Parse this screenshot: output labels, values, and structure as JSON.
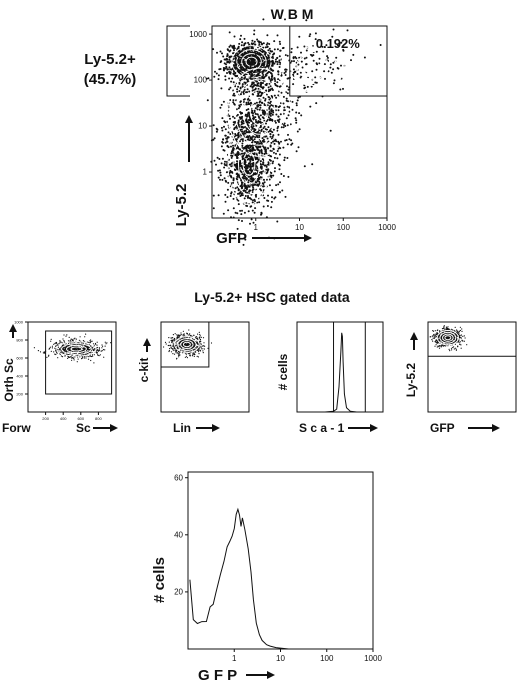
{
  "figure": {
    "main_title": "W B M",
    "gate_label_line1": "Ly-5.2+",
    "gate_label_line2": "(45.7%)",
    "panel_row_title": "Ly-5.2+ HSC gated data"
  },
  "chart_data": [
    {
      "type": "scatter",
      "title": "W B M",
      "xlabel": "GFP",
      "ylabel": "Ly-5.2",
      "xscale": "log",
      "yscale": "log",
      "xlim": [
        0.1,
        1000
      ],
      "ylim": [
        0.1,
        1500
      ],
      "x_ticks": [
        "1",
        "10",
        "100",
        "1000"
      ],
      "y_ticks": [
        "1",
        "10",
        "100",
        "1000"
      ],
      "gate_bracket": {
        "label": "Ly-5.2+",
        "percent": "(45.7%)",
        "y_range": [
          45,
          1500
        ]
      },
      "gate_box": {
        "label": "0.192%",
        "x_range": [
          6,
          1000
        ],
        "y_range": [
          45,
          1500
        ]
      },
      "population": [
        {
          "x": 0.8,
          "y": 250,
          "sx": 0.28,
          "sy": 0.22,
          "n": 900
        },
        {
          "x": 0.7,
          "y": 1.5,
          "sx": 0.3,
          "sy": 0.55,
          "n": 900
        },
        {
          "x": 1.2,
          "y": 20,
          "sx": 0.45,
          "sy": 0.6,
          "n": 600
        },
        {
          "x": 20,
          "y": 200,
          "sx": 0.45,
          "sy": 0.35,
          "n": 120
        }
      ]
    },
    {
      "type": "scatter",
      "xlabel": "Forw Sc",
      "ylabel": "Orth Sc",
      "xlim": [
        0,
        1000
      ],
      "ylim": [
        0,
        1000
      ],
      "x_ticks": [
        "200",
        "400",
        "600",
        "800"
      ],
      "y_ticks": [
        "200",
        "400",
        "600",
        "800",
        "1000"
      ],
      "gate_box": {
        "x_range": [
          200,
          950
        ],
        "y_range": [
          200,
          900
        ]
      },
      "population": [
        {
          "x": 550,
          "y": 700,
          "sx": 140,
          "sy": 50,
          "n": 700
        }
      ]
    },
    {
      "type": "scatter",
      "xlabel": "Lin",
      "ylabel": "c-kit",
      "xscale": "log",
      "yscale": "log",
      "xlim": [
        0.1,
        1000
      ],
      "ylim": [
        0.1,
        1000
      ],
      "gate_box": {
        "x_range": [
          0.1,
          15
        ],
        "y_range": [
          10,
          1000
        ]
      },
      "population": [
        {
          "x": 1.5,
          "y": 100,
          "sx": 0.35,
          "sy": 0.22,
          "n": 700
        }
      ]
    },
    {
      "type": "line",
      "xlabel": "Sca-1",
      "ylabel": "# cells",
      "xscale": "log",
      "xlim": [
        0.1,
        1000
      ],
      "ylim": [
        0,
        125
      ],
      "gate_lines": [
        5,
        150
      ],
      "series": [
        {
          "x": [
            0.1,
            2,
            5,
            7,
            9,
            11,
            12,
            13,
            14,
            16,
            20,
            30,
            60,
            1000
          ],
          "y": [
            0,
            0,
            1,
            4,
            35,
            85,
            110,
            105,
            70,
            25,
            6,
            1,
            0,
            0
          ]
        }
      ]
    },
    {
      "type": "scatter",
      "xlabel": "GFP",
      "ylabel": "Ly-5.2",
      "xscale": "log",
      "yscale": "log",
      "xlim": [
        0.1,
        1000
      ],
      "ylim": [
        0.1,
        1000
      ],
      "gate_box": {
        "x_range": [
          0.1,
          1000
        ],
        "y_range": [
          30,
          1000
        ]
      },
      "population": [
        {
          "x": 0.8,
          "y": 200,
          "sx": 0.3,
          "sy": 0.2,
          "n": 700
        }
      ]
    },
    {
      "type": "line",
      "xlabel": "GFP",
      "ylabel": "# cells",
      "xscale": "log",
      "xlim": [
        0.1,
        1000
      ],
      "ylim": [
        0,
        62
      ],
      "x_ticks": [
        "1",
        "10",
        "100",
        "1000"
      ],
      "y_ticks": [
        "20",
        "40",
        "60"
      ],
      "series": [
        {
          "x": [
            0.11,
            0.13,
            0.16,
            0.2,
            0.25,
            0.3,
            0.35,
            0.4,
            0.5,
            0.6,
            0.7,
            0.8,
            0.9,
            1.0,
            1.1,
            1.2,
            1.3,
            1.4,
            1.5,
            1.7,
            2.0,
            2.3,
            2.6,
            3.0,
            3.5,
            4.0,
            5.0,
            6.0,
            8.0,
            10,
            15,
            100,
            1000
          ],
          "y": [
            25,
            11,
            9,
            9,
            11,
            14,
            17,
            21,
            26,
            30,
            35,
            38,
            40,
            43,
            47,
            50,
            48,
            44,
            45,
            42,
            35,
            27,
            18,
            10,
            5,
            3,
            1.5,
            1,
            0.5,
            0.3,
            0,
            0,
            0
          ]
        }
      ]
    }
  ]
}
